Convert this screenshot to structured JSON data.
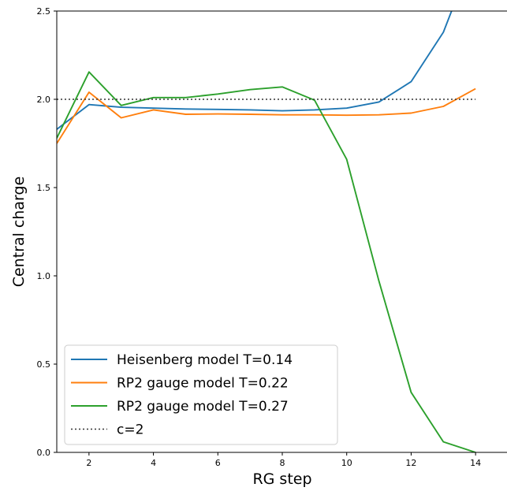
{
  "chart_data": {
    "type": "line",
    "xlabel": "RG step",
    "ylabel": "Central charge",
    "xlim": [
      1,
      15
    ],
    "ylim": [
      0,
      2.5
    ],
    "xticks": [
      2,
      4,
      6,
      8,
      10,
      12,
      14
    ],
    "yticks": [
      0.0,
      0.5,
      1.0,
      1.5,
      2.0,
      2.5
    ],
    "xtick_labels": [
      "2",
      "4",
      "6",
      "8",
      "10",
      "12",
      "14"
    ],
    "ytick_labels": [
      "0.0",
      "0.5",
      "1.0",
      "1.5",
      "2.0",
      "2.5"
    ],
    "grid": false,
    "legend_position": "lower-left",
    "series": [
      {
        "name": "Heisenberg model T=0.14",
        "color": "#1f77b4",
        "style": "solid",
        "x": [
          1,
          2,
          3,
          4,
          5,
          6,
          7,
          8,
          9,
          10,
          11,
          12,
          13,
          14
        ],
        "y": [
          1.83,
          1.97,
          1.955,
          1.95,
          1.945,
          1.943,
          1.94,
          1.935,
          1.94,
          1.95,
          1.985,
          2.1,
          2.38,
          2.85
        ]
      },
      {
        "name": "RP2 gauge model T=0.22",
        "color": "#ff7f0e",
        "style": "solid",
        "x": [
          1,
          2,
          3,
          4,
          5,
          6,
          7,
          8,
          9,
          10,
          11,
          12,
          13,
          14
        ],
        "y": [
          1.75,
          2.04,
          1.895,
          1.94,
          1.915,
          1.917,
          1.915,
          1.912,
          1.912,
          1.91,
          1.912,
          1.922,
          1.96,
          2.06
        ]
      },
      {
        "name": "RP2 gauge model T=0.27",
        "color": "#2ca02c",
        "style": "solid",
        "x": [
          1,
          2,
          3,
          4,
          5,
          6,
          7,
          8,
          9,
          10,
          11,
          12,
          13,
          14
        ],
        "y": [
          1.78,
          2.155,
          1.965,
          2.01,
          2.01,
          2.03,
          2.055,
          2.07,
          1.995,
          1.66,
          0.97,
          0.34,
          0.06,
          0.0
        ]
      },
      {
        "name": "c=2",
        "color": "#333333",
        "style": "dotted",
        "x": [
          1,
          14
        ],
        "y": [
          2.0,
          2.0
        ]
      }
    ]
  }
}
